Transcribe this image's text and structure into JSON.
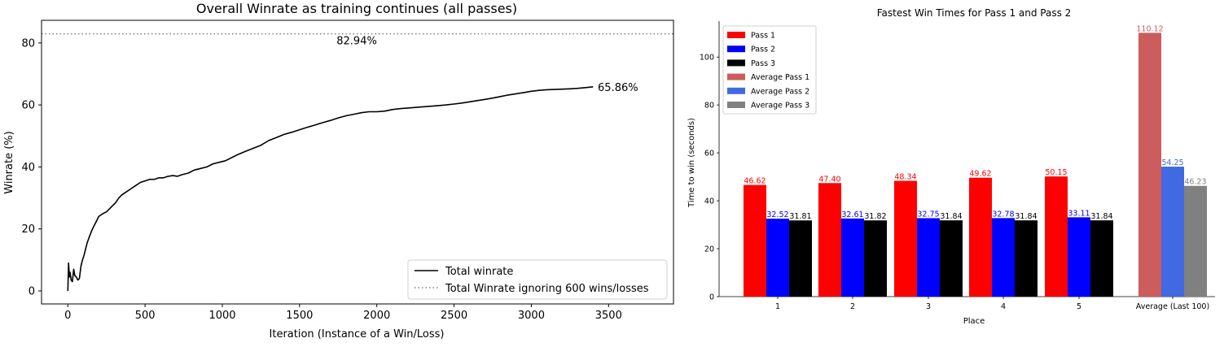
{
  "chart_data": [
    {
      "type": "line",
      "title": "Overall Winrate as training continues (all passes)",
      "xlabel": "Iteration (Instance of a Win/Loss)",
      "ylabel": "Winrate (%)",
      "xlim": [
        -170,
        3920
      ],
      "ylim": [
        -4.2,
        87.3
      ],
      "xticks": [
        0,
        500,
        1000,
        1500,
        2000,
        2500,
        3000,
        3500
      ],
      "yticks": [
        0,
        20,
        40,
        60,
        80
      ],
      "grid": false,
      "legend": "bottom-right",
      "series": [
        {
          "name": "Total winrate",
          "color": "#000000",
          "x": [
            0,
            5,
            10,
            15,
            22,
            30,
            38,
            45,
            55,
            65,
            75,
            85,
            95,
            105,
            115,
            125,
            140,
            155,
            170,
            185,
            200,
            215,
            230,
            250,
            270,
            290,
            310,
            330,
            350,
            380,
            410,
            440,
            470,
            500,
            530,
            560,
            590,
            620,
            650,
            680,
            710,
            740,
            780,
            820,
            860,
            900,
            940,
            980,
            1020,
            1060,
            1100,
            1150,
            1200,
            1250,
            1300,
            1350,
            1400,
            1450,
            1500,
            1550,
            1600,
            1650,
            1700,
            1750,
            1800,
            1850,
            1900,
            1950,
            2000,
            2050,
            2100,
            2150,
            2200,
            2250,
            2300,
            2350,
            2400,
            2450,
            2500,
            2550,
            2600,
            2650,
            2700,
            2750,
            2800,
            2850,
            2900,
            2950,
            3000,
            3050,
            3100,
            3150,
            3200,
            3250,
            3300,
            3350,
            3400
          ],
          "y": [
            0.0,
            9.0,
            4.5,
            6.0,
            3.5,
            3.0,
            7.0,
            5.0,
            4.5,
            3.5,
            4.0,
            8.0,
            10.0,
            11.5,
            13.5,
            15.5,
            17.5,
            19.5,
            21.0,
            22.5,
            24.0,
            24.5,
            25.0,
            25.5,
            26.5,
            27.5,
            28.5,
            30.0,
            31.0,
            32.0,
            33.0,
            34.0,
            35.0,
            35.5,
            36.0,
            36.0,
            36.5,
            36.5,
            37.0,
            37.2,
            37.0,
            37.5,
            38.0,
            39.0,
            39.5,
            40.0,
            41.0,
            41.5,
            42.0,
            43.0,
            44.0,
            45.0,
            46.0,
            47.0,
            48.5,
            49.5,
            50.5,
            51.2,
            52.0,
            52.8,
            53.5,
            54.3,
            55.0,
            55.8,
            56.5,
            57.0,
            57.5,
            57.8,
            57.8,
            58.0,
            58.5,
            58.8,
            59.0,
            59.2,
            59.4,
            59.6,
            59.8,
            60.0,
            60.3,
            60.6,
            61.0,
            61.4,
            61.8,
            62.2,
            62.7,
            63.2,
            63.6,
            64.0,
            64.4,
            64.7,
            64.9,
            65.0,
            65.1,
            65.2,
            65.35,
            65.6,
            65.86
          ]
        },
        {
          "name": "Total Winrate ignoring 600 wins/losses",
          "color": "#808080",
          "style": "dotted",
          "y_constant": 82.94
        }
      ],
      "annotations": [
        {
          "text": "82.94%",
          "x": 1870,
          "y": 80.9
        },
        {
          "text": "65.86%",
          "x": 3430,
          "y": 65.86
        }
      ]
    },
    {
      "type": "bar",
      "title": "Fastest Win Times for Pass 1 and Pass 2",
      "xlabel": "Place",
      "ylabel": "Time to win (seconds)",
      "ylim": [
        0,
        115
      ],
      "yticks": [
        0,
        20,
        40,
        60,
        80,
        100
      ],
      "categories": [
        "1",
        "2",
        "3",
        "4",
        "5",
        "Average (Last 100)"
      ],
      "grid": false,
      "legend": "top-left",
      "series": [
        {
          "name": "Pass 1",
          "color": "#ff0000",
          "label_color": "#ff0000",
          "values": [
            46.62,
            47.4,
            48.34,
            49.62,
            50.15,
            null
          ],
          "labels": [
            "46.62",
            "47.40",
            "48.34",
            "49.62",
            "50.15",
            ""
          ]
        },
        {
          "name": "Pass 2",
          "color": "#0000ff",
          "label_color": "#0000ff",
          "values": [
            32.52,
            32.61,
            32.75,
            32.78,
            33.11,
            null
          ],
          "labels": [
            "32.52",
            "32.61",
            "32.75",
            "32.78",
            "33.11",
            ""
          ]
        },
        {
          "name": "Pass 3",
          "color": "#000000",
          "label_color": "#000000",
          "values": [
            31.81,
            31.82,
            31.84,
            31.84,
            31.84,
            null
          ],
          "labels": [
            "31.81",
            "31.82",
            "31.84",
            "31.84",
            "31.84",
            ""
          ]
        },
        {
          "name": "Average Pass 1",
          "color": "#cd5c5c",
          "label_color": "#cd5c5c",
          "values": [
            null,
            null,
            null,
            null,
            null,
            110.12
          ],
          "labels": [
            "",
            "",
            "",
            "",
            "",
            "110.12"
          ]
        },
        {
          "name": "Average Pass 2",
          "color": "#4169e1",
          "label_color": "#4169e1",
          "values": [
            null,
            null,
            null,
            null,
            null,
            54.25
          ],
          "labels": [
            "",
            "",
            "",
            "",
            "",
            "54.25"
          ]
        },
        {
          "name": "Average Pass 3",
          "color": "#808080",
          "label_color": "#808080",
          "values": [
            null,
            null,
            null,
            null,
            null,
            46.23
          ],
          "labels": [
            "",
            "",
            "",
            "",
            "",
            "46.23"
          ]
        }
      ]
    }
  ]
}
